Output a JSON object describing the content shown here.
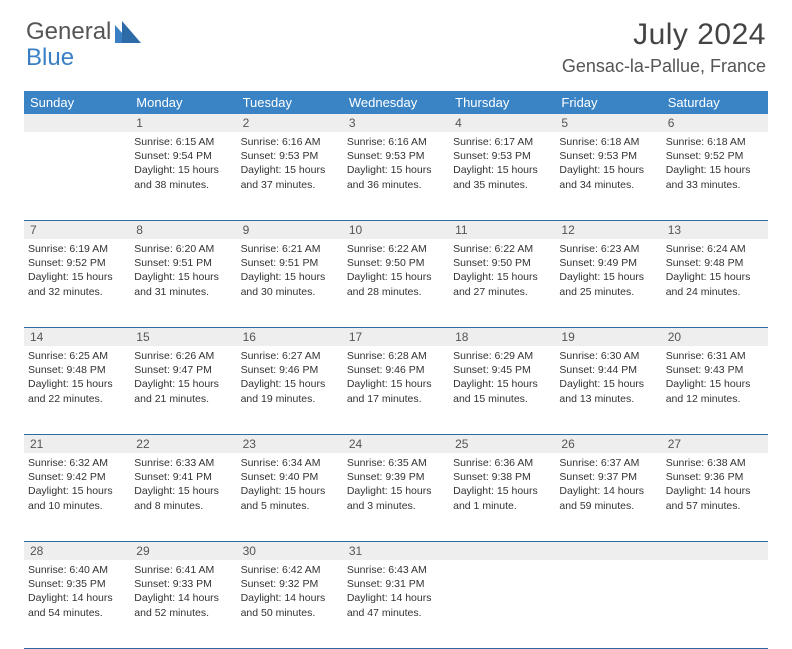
{
  "logo": {
    "text1": "General",
    "text2": "Blue"
  },
  "title": "July 2024",
  "location": "Gensac-la-Pallue, France",
  "colors": {
    "header_bg": "#3a84c6",
    "header_fg": "#ffffff",
    "daynum_bg": "#eeeeee",
    "rule": "#2f6aa5"
  },
  "weekdays": [
    "Sunday",
    "Monday",
    "Tuesday",
    "Wednesday",
    "Thursday",
    "Friday",
    "Saturday"
  ],
  "weeks": [
    [
      {
        "n": "",
        "t": []
      },
      {
        "n": "1",
        "t": [
          "Sunrise: 6:15 AM",
          "Sunset: 9:54 PM",
          "Daylight: 15 hours",
          "and 38 minutes."
        ]
      },
      {
        "n": "2",
        "t": [
          "Sunrise: 6:16 AM",
          "Sunset: 9:53 PM",
          "Daylight: 15 hours",
          "and 37 minutes."
        ]
      },
      {
        "n": "3",
        "t": [
          "Sunrise: 6:16 AM",
          "Sunset: 9:53 PM",
          "Daylight: 15 hours",
          "and 36 minutes."
        ]
      },
      {
        "n": "4",
        "t": [
          "Sunrise: 6:17 AM",
          "Sunset: 9:53 PM",
          "Daylight: 15 hours",
          "and 35 minutes."
        ]
      },
      {
        "n": "5",
        "t": [
          "Sunrise: 6:18 AM",
          "Sunset: 9:53 PM",
          "Daylight: 15 hours",
          "and 34 minutes."
        ]
      },
      {
        "n": "6",
        "t": [
          "Sunrise: 6:18 AM",
          "Sunset: 9:52 PM",
          "Daylight: 15 hours",
          "and 33 minutes."
        ]
      }
    ],
    [
      {
        "n": "7",
        "t": [
          "Sunrise: 6:19 AM",
          "Sunset: 9:52 PM",
          "Daylight: 15 hours",
          "and 32 minutes."
        ]
      },
      {
        "n": "8",
        "t": [
          "Sunrise: 6:20 AM",
          "Sunset: 9:51 PM",
          "Daylight: 15 hours",
          "and 31 minutes."
        ]
      },
      {
        "n": "9",
        "t": [
          "Sunrise: 6:21 AM",
          "Sunset: 9:51 PM",
          "Daylight: 15 hours",
          "and 30 minutes."
        ]
      },
      {
        "n": "10",
        "t": [
          "Sunrise: 6:22 AM",
          "Sunset: 9:50 PM",
          "Daylight: 15 hours",
          "and 28 minutes."
        ]
      },
      {
        "n": "11",
        "t": [
          "Sunrise: 6:22 AM",
          "Sunset: 9:50 PM",
          "Daylight: 15 hours",
          "and 27 minutes."
        ]
      },
      {
        "n": "12",
        "t": [
          "Sunrise: 6:23 AM",
          "Sunset: 9:49 PM",
          "Daylight: 15 hours",
          "and 25 minutes."
        ]
      },
      {
        "n": "13",
        "t": [
          "Sunrise: 6:24 AM",
          "Sunset: 9:48 PM",
          "Daylight: 15 hours",
          "and 24 minutes."
        ]
      }
    ],
    [
      {
        "n": "14",
        "t": [
          "Sunrise: 6:25 AM",
          "Sunset: 9:48 PM",
          "Daylight: 15 hours",
          "and 22 minutes."
        ]
      },
      {
        "n": "15",
        "t": [
          "Sunrise: 6:26 AM",
          "Sunset: 9:47 PM",
          "Daylight: 15 hours",
          "and 21 minutes."
        ]
      },
      {
        "n": "16",
        "t": [
          "Sunrise: 6:27 AM",
          "Sunset: 9:46 PM",
          "Daylight: 15 hours",
          "and 19 minutes."
        ]
      },
      {
        "n": "17",
        "t": [
          "Sunrise: 6:28 AM",
          "Sunset: 9:46 PM",
          "Daylight: 15 hours",
          "and 17 minutes."
        ]
      },
      {
        "n": "18",
        "t": [
          "Sunrise: 6:29 AM",
          "Sunset: 9:45 PM",
          "Daylight: 15 hours",
          "and 15 minutes."
        ]
      },
      {
        "n": "19",
        "t": [
          "Sunrise: 6:30 AM",
          "Sunset: 9:44 PM",
          "Daylight: 15 hours",
          "and 13 minutes."
        ]
      },
      {
        "n": "20",
        "t": [
          "Sunrise: 6:31 AM",
          "Sunset: 9:43 PM",
          "Daylight: 15 hours",
          "and 12 minutes."
        ]
      }
    ],
    [
      {
        "n": "21",
        "t": [
          "Sunrise: 6:32 AM",
          "Sunset: 9:42 PM",
          "Daylight: 15 hours",
          "and 10 minutes."
        ]
      },
      {
        "n": "22",
        "t": [
          "Sunrise: 6:33 AM",
          "Sunset: 9:41 PM",
          "Daylight: 15 hours",
          "and 8 minutes."
        ]
      },
      {
        "n": "23",
        "t": [
          "Sunrise: 6:34 AM",
          "Sunset: 9:40 PM",
          "Daylight: 15 hours",
          "and 5 minutes."
        ]
      },
      {
        "n": "24",
        "t": [
          "Sunrise: 6:35 AM",
          "Sunset: 9:39 PM",
          "Daylight: 15 hours",
          "and 3 minutes."
        ]
      },
      {
        "n": "25",
        "t": [
          "Sunrise: 6:36 AM",
          "Sunset: 9:38 PM",
          "Daylight: 15 hours",
          "and 1 minute."
        ]
      },
      {
        "n": "26",
        "t": [
          "Sunrise: 6:37 AM",
          "Sunset: 9:37 PM",
          "Daylight: 14 hours",
          "and 59 minutes."
        ]
      },
      {
        "n": "27",
        "t": [
          "Sunrise: 6:38 AM",
          "Sunset: 9:36 PM",
          "Daylight: 14 hours",
          "and 57 minutes."
        ]
      }
    ],
    [
      {
        "n": "28",
        "t": [
          "Sunrise: 6:40 AM",
          "Sunset: 9:35 PM",
          "Daylight: 14 hours",
          "and 54 minutes."
        ]
      },
      {
        "n": "29",
        "t": [
          "Sunrise: 6:41 AM",
          "Sunset: 9:33 PM",
          "Daylight: 14 hours",
          "and 52 minutes."
        ]
      },
      {
        "n": "30",
        "t": [
          "Sunrise: 6:42 AM",
          "Sunset: 9:32 PM",
          "Daylight: 14 hours",
          "and 50 minutes."
        ]
      },
      {
        "n": "31",
        "t": [
          "Sunrise: 6:43 AM",
          "Sunset: 9:31 PM",
          "Daylight: 14 hours",
          "and 47 minutes."
        ]
      },
      {
        "n": "",
        "t": []
      },
      {
        "n": "",
        "t": []
      },
      {
        "n": "",
        "t": []
      }
    ]
  ]
}
